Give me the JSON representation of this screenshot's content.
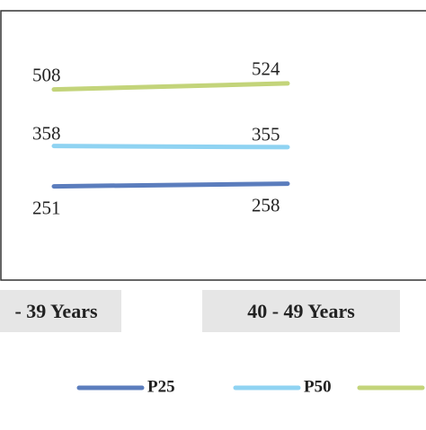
{
  "chart_data": {
    "type": "line",
    "categories": [
      "- 39 Years",
      "40 - 49 Years"
    ],
    "series": [
      {
        "name": "P25",
        "color": "#5b7dbd",
        "values": [
          251,
          258
        ]
      },
      {
        "name": "P50",
        "color": "#8fd3f2",
        "values": [
          358,
          355
        ]
      },
      {
        "color": "#c3d47a",
        "values": [
          508,
          524
        ]
      }
    ],
    "ylim": [
      0,
      700
    ]
  }
}
